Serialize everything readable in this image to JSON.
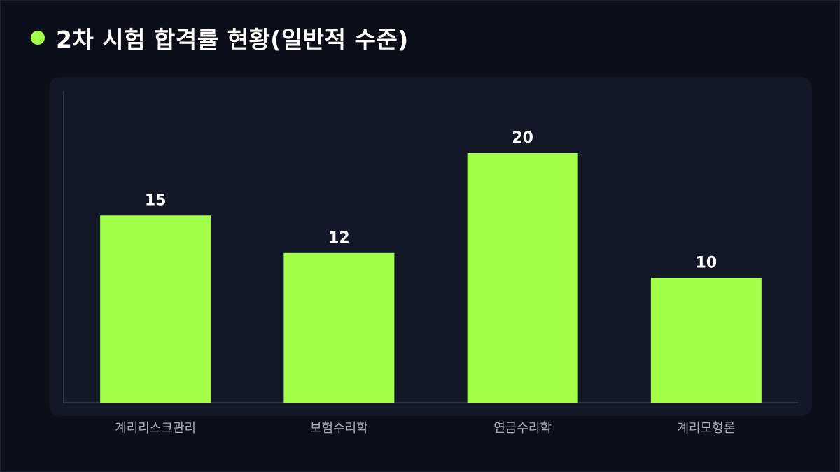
{
  "header": {
    "title": "2차 시험 합격률 현황(일반적 수준)"
  },
  "colors": {
    "background": "#0b0f19",
    "panel": "#121826",
    "bar": "#a3ff47",
    "axis": "#3a4253",
    "label": "#a7adb8",
    "value_label": "#ffffff"
  },
  "chart_data": {
    "type": "bar",
    "title": "2차 시험 합격률 현황(일반적 수준)",
    "categories": [
      "계리리스크관리",
      "보험수리학",
      "연금수리학",
      "계리모형론"
    ],
    "values": [
      15,
      12,
      20,
      10
    ],
    "xlabel": "",
    "ylabel": "",
    "ylim": [
      0,
      25
    ],
    "grid": false,
    "legend": "none"
  }
}
